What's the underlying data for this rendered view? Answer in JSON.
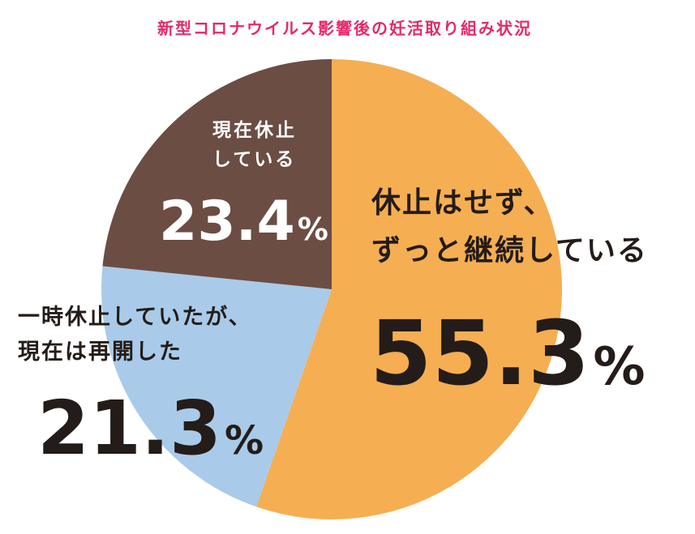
{
  "colors": {
    "title": "#e5296b",
    "text_dark": "#241c18",
    "text_light": "#ffffff",
    "slice_continuing": "#f5ae52",
    "slice_resumed": "#a9cbe9",
    "slice_paused": "#6b4d43"
  },
  "chart_data": {
    "type": "pie",
    "title": "新型コロナウイルス影響後の妊活取り組み状況",
    "unit": "%",
    "slices": [
      {
        "key": "continuing",
        "label_lines": [
          "休止はせず、",
          "ずっと継続している"
        ],
        "value": 55.3,
        "value_text": "55.3",
        "unit": "%"
      },
      {
        "key": "resumed",
        "label_lines": [
          "一時休止していたが、",
          "現在は再開した"
        ],
        "value": 21.3,
        "value_text": "21.3",
        "unit": "%"
      },
      {
        "key": "paused",
        "label_lines": [
          "現在休止",
          "している"
        ],
        "value": 23.4,
        "value_text": "23.4",
        "unit": "%"
      }
    ]
  }
}
